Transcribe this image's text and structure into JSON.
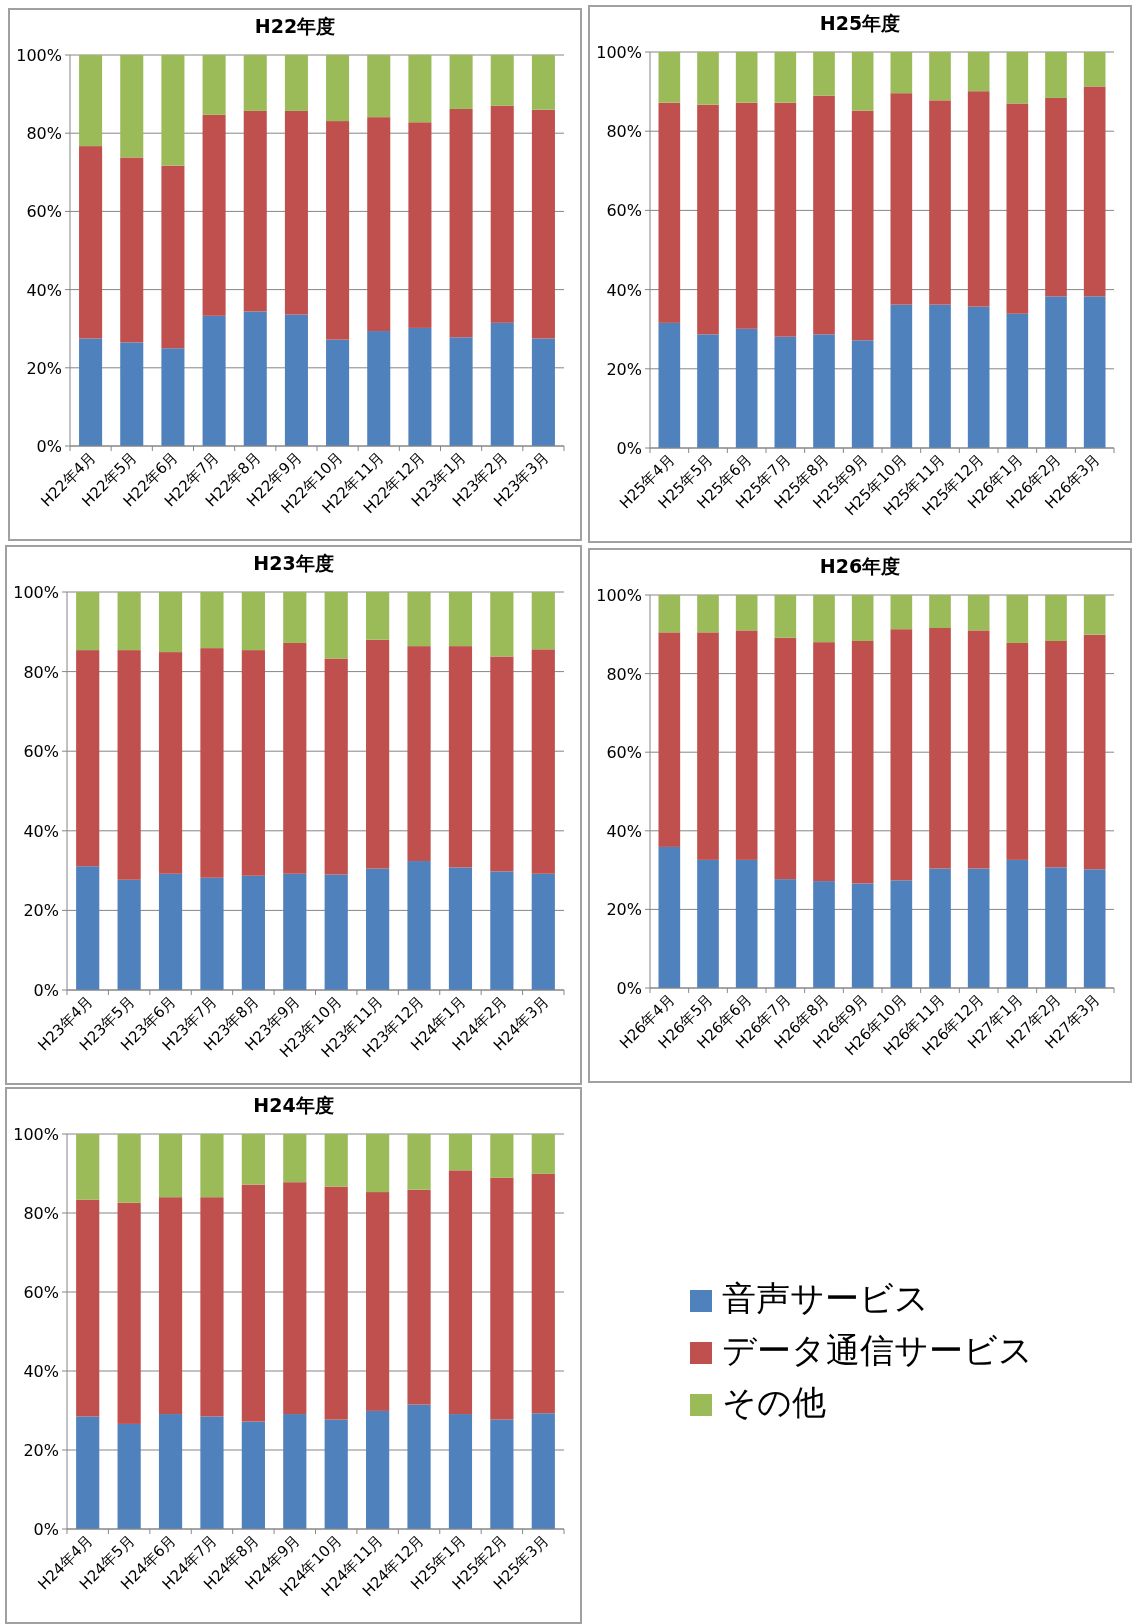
{
  "chart_data": [
    {
      "type": "bar",
      "title": "H22年度",
      "stacked": true,
      "grid": "y",
      "ylim": [
        0,
        100
      ],
      "yticks": [
        {
          "value": 0,
          "label": "0%"
        },
        {
          "value": 20,
          "label": "20%"
        },
        {
          "value": 40,
          "label": "40%"
        },
        {
          "value": 60,
          "label": "60%"
        },
        {
          "value": 80,
          "label": "80%"
        },
        {
          "value": 100,
          "label": "100%"
        }
      ],
      "categories": [
        "H22年4月",
        "H22年5月",
        "H22年6月",
        "H22年7月",
        "H22年8月",
        "H22年9月",
        "H22年10月",
        "H22年11月",
        "H22年12月",
        "H23年1月",
        "H23年2月",
        "H23年3月"
      ],
      "series": [
        {
          "color": "#4f81bd",
          "values": [
            27.5,
            26.5,
            25,
            33.3,
            34.4,
            33.6,
            27.2,
            29.4,
            30.2,
            27.8,
            31.5,
            27.5
          ]
        },
        {
          "color": "#c0504d",
          "values": [
            49.2,
            47.3,
            46.7,
            51.4,
            51.3,
            52.1,
            55.9,
            54.7,
            52.6,
            58.4,
            55.5,
            58.5
          ]
        },
        {
          "color": "#9bbb59",
          "values": [
            23.3,
            26.2,
            28.3,
            15.3,
            14.3,
            14.3,
            16.9,
            15.9,
            17.2,
            13.8,
            13,
            14
          ]
        }
      ]
    },
    {
      "type": "bar",
      "title": "H25年度",
      "stacked": true,
      "grid": "y",
      "ylim": [
        0,
        100
      ],
      "yticks": [
        {
          "value": 0,
          "label": "0%"
        },
        {
          "value": 20,
          "label": "20%"
        },
        {
          "value": 40,
          "label": "40%"
        },
        {
          "value": 60,
          "label": "60%"
        },
        {
          "value": 80,
          "label": "80%"
        },
        {
          "value": 100,
          "label": "100%"
        }
      ],
      "categories": [
        "H25年4月",
        "H25年5月",
        "H25年6月",
        "H25年7月",
        "H25年8月",
        "H25年9月",
        "H25年10月",
        "H25年11月",
        "H25年12月",
        "H26年1月",
        "H26年2月",
        "H26年3月"
      ],
      "series": [
        {
          "color": "#4f81bd",
          "values": [
            31.6,
            28.7,
            30.1,
            28.1,
            28.7,
            27.2,
            36.2,
            36.2,
            35.7,
            33.9,
            38.3,
            38.3
          ]
        },
        {
          "color": "#c0504d",
          "values": [
            55.6,
            58,
            57.1,
            59.1,
            60.3,
            58,
            53.4,
            51.6,
            54.4,
            53.1,
            50.1,
            53
          ]
        },
        {
          "color": "#9bbb59",
          "values": [
            12.8,
            13.3,
            12.8,
            12.8,
            11,
            14.8,
            10.4,
            12.2,
            9.9,
            13,
            11.6,
            8.7
          ]
        }
      ]
    },
    {
      "type": "bar",
      "title": "H23年度",
      "stacked": true,
      "grid": "y",
      "ylim": [
        0,
        100
      ],
      "yticks": [
        {
          "value": 0,
          "label": "0%"
        },
        {
          "value": 20,
          "label": "20%"
        },
        {
          "value": 40,
          "label": "40%"
        },
        {
          "value": 60,
          "label": "60%"
        },
        {
          "value": 80,
          "label": "80%"
        },
        {
          "value": 100,
          "label": "100%"
        }
      ],
      "categories": [
        "H23年4月",
        "H23年5月",
        "H23年6月",
        "H23年7月",
        "H23年8月",
        "H23年9月",
        "H23年10月",
        "H23年11月",
        "H23年12月",
        "H24年1月",
        "H24年2月",
        "H24年3月"
      ],
      "series": [
        {
          "color": "#4f81bd",
          "values": [
            31.1,
            27.7,
            29.2,
            28.2,
            28.7,
            29.2,
            29,
            30.5,
            32.4,
            30.8,
            29.8,
            29.2
          ]
        },
        {
          "color": "#c0504d",
          "values": [
            54.3,
            57.7,
            55.7,
            57.7,
            56.7,
            58,
            54.3,
            57.5,
            54,
            55.6,
            54,
            56.4
          ]
        },
        {
          "color": "#9bbb59",
          "values": [
            14.6,
            14.6,
            15.1,
            14.1,
            14.6,
            12.8,
            16.7,
            12,
            13.6,
            13.6,
            16.2,
            14.4
          ]
        }
      ]
    },
    {
      "type": "bar",
      "title": "H26年度",
      "stacked": true,
      "grid": "y",
      "ylim": [
        0,
        100
      ],
      "yticks": [
        {
          "value": 0,
          "label": "0%"
        },
        {
          "value": 20,
          "label": "20%"
        },
        {
          "value": 40,
          "label": "40%"
        },
        {
          "value": 60,
          "label": "60%"
        },
        {
          "value": 80,
          "label": "80%"
        },
        {
          "value": 100,
          "label": "100%"
        }
      ],
      "categories": [
        "H26年4月",
        "H26年5月",
        "H26年6月",
        "H26年7月",
        "H26年8月",
        "H26年9月",
        "H26年10月",
        "H26年11月",
        "H26年12月",
        "H27年1月",
        "H27年2月",
        "H27年3月"
      ],
      "series": [
        {
          "color": "#4f81bd",
          "values": [
            35.9,
            32.6,
            32.6,
            27.7,
            27.2,
            26.6,
            27.4,
            30.4,
            30.4,
            32.6,
            30.7,
            30.2
          ]
        },
        {
          "color": "#c0504d",
          "values": [
            54.6,
            57.9,
            58.4,
            61.4,
            60.8,
            61.7,
            63.9,
            61.2,
            60.6,
            55.2,
            57.6,
            59.7
          ]
        },
        {
          "color": "#9bbb59",
          "values": [
            9.5,
            9.5,
            9,
            10.9,
            12,
            11.7,
            8.7,
            8.4,
            9,
            12.2,
            11.7,
            10.1
          ]
        }
      ]
    },
    {
      "type": "bar",
      "title": "H24年度",
      "stacked": true,
      "grid": "y",
      "legend": "right",
      "ylim": [
        0,
        100
      ],
      "yticks": [
        {
          "value": 0,
          "label": "0%"
        },
        {
          "value": 20,
          "label": "20%"
        },
        {
          "value": 40,
          "label": "40%"
        },
        {
          "value": 60,
          "label": "60%"
        },
        {
          "value": 80,
          "label": "80%"
        },
        {
          "value": 100,
          "label": "100%"
        }
      ],
      "categories": [
        "H24年4月",
        "H24年5月",
        "H24年6月",
        "H24年7月",
        "H24年8月",
        "H24年9月",
        "H24年10月",
        "H24年11月",
        "H24年12月",
        "H25年1月",
        "H25年2月",
        "H25年3月"
      ],
      "series": [
        {
          "name": "音声サービス",
          "color": "#4f81bd",
          "values": [
            28.5,
            26.6,
            29.1,
            28.5,
            27.2,
            29.1,
            27.7,
            29.9,
            31.5,
            29.1,
            27.7,
            29.3
          ]
        },
        {
          "name": "データ通信サービス",
          "color": "#c0504d",
          "values": [
            54.9,
            56,
            54.9,
            55.5,
            60,
            58.7,
            59,
            55.4,
            54.4,
            61.7,
            61.2,
            60.6
          ]
        },
        {
          "name": "その他",
          "color": "#9bbb59",
          "values": [
            16.6,
            17.4,
            16,
            16,
            12.8,
            12.2,
            13.3,
            14.7,
            14.1,
            9.2,
            11.1,
            10.1
          ]
        }
      ]
    }
  ]
}
